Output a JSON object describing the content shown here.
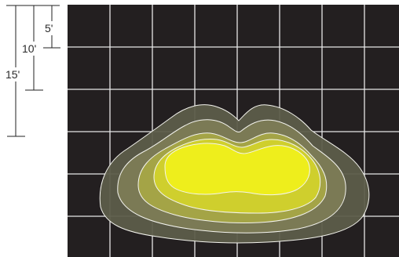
{
  "scale": {
    "labels": [
      "5'",
      "10'",
      "15'"
    ]
  },
  "colors": {
    "background": "#231f20",
    "grid": "#e6e6e6",
    "scale_lines": "#222222",
    "contour_stroke": "#f4f4ee",
    "contours": [
      "#5d5d4a",
      "#7b7a55",
      "#a4a446",
      "#cfcf2d",
      "#eeee1c"
    ]
  }
}
